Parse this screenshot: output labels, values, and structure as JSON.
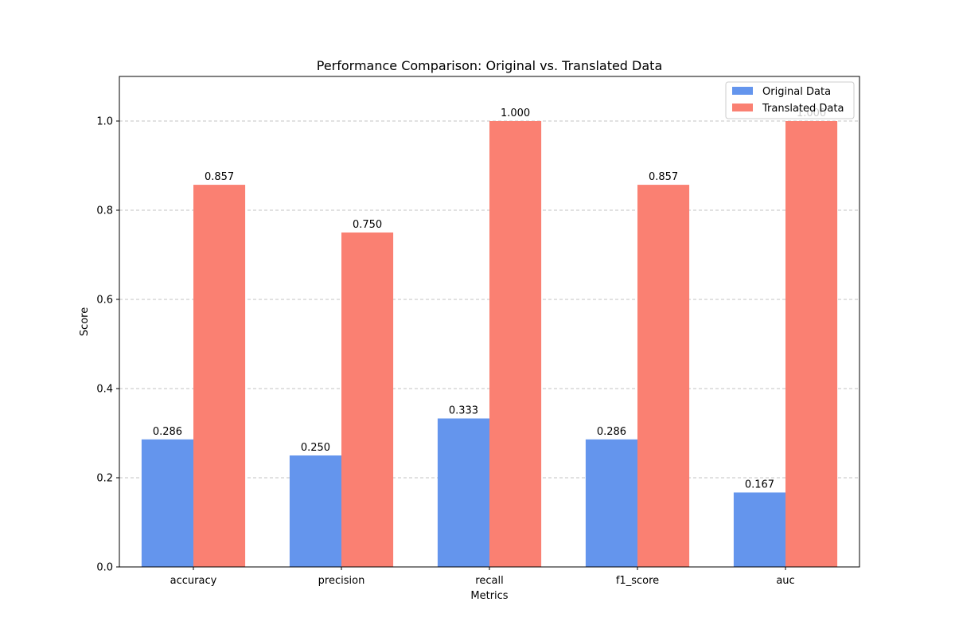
{
  "chart_data": {
    "type": "bar",
    "title": "Performance Comparison: Original vs. Translated Data",
    "xlabel": "Metrics",
    "ylabel": "Score",
    "categories": [
      "accuracy",
      "precision",
      "recall",
      "f1_score",
      "auc"
    ],
    "series": [
      {
        "name": "Original Data",
        "color": "#6495ED",
        "values": [
          0.286,
          0.25,
          0.333,
          0.286,
          0.167
        ]
      },
      {
        "name": "Translated Data",
        "color": "#FA8072",
        "values": [
          0.857,
          0.75,
          1.0,
          0.857,
          1.0
        ]
      }
    ],
    "data_labels": [
      [
        "0.286",
        "0.250",
        "0.333",
        "0.286",
        "0.167"
      ],
      [
        "0.857",
        "0.750",
        "1.000",
        "0.857",
        "1.000"
      ]
    ],
    "ylim": [
      0,
      1.1
    ],
    "yticks": [
      0.0,
      0.2,
      0.4,
      0.6,
      0.8,
      1.0
    ],
    "ytick_labels": [
      "0.0",
      "0.2",
      "0.4",
      "0.6",
      "0.8",
      "1.0"
    ],
    "grid": {
      "y": true,
      "style": "dashed"
    },
    "legend_position": "top-right"
  }
}
